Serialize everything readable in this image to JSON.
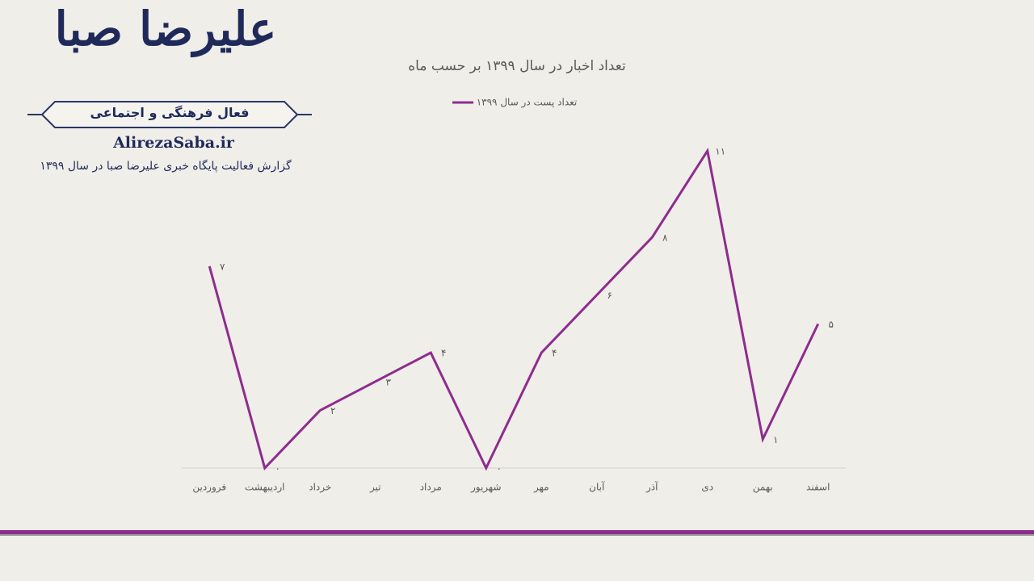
{
  "header": {
    "name": "علیرضا صبا",
    "tagline": "فعال فرهنگی و اجتماعی",
    "website": "AlirezaSaba.ir",
    "subtitle": "گزارش فعالیت پایگاه خبری علیرضا صبا در سال ۱۳۹۹"
  },
  "chart_data": {
    "type": "line",
    "title": "تعداد اخبار در سال ۱۳۹۹ بر حسب ماه",
    "categories": [
      "فروردین",
      "اردیبهشت",
      "خرداد",
      "تیر",
      "مرداد",
      "شهریور",
      "مهر",
      "آبان",
      "آذر",
      "دی",
      "بهمن",
      "اسفند"
    ],
    "series": [
      {
        "name": "تعداد پست در سال ۱۳۹۹",
        "color": "#8e2c8e",
        "values": [
          7,
          0,
          2,
          3,
          4,
          0,
          4,
          6,
          8,
          11,
          1,
          5
        ],
        "value_labels": [
          "۷",
          "۰",
          "۲",
          "۳",
          "۴",
          "۰",
          "۴",
          "۶",
          "۸",
          "۱۱",
          "۱",
          "۵"
        ]
      }
    ],
    "ylim": [
      0,
      11
    ],
    "legend": "top"
  }
}
